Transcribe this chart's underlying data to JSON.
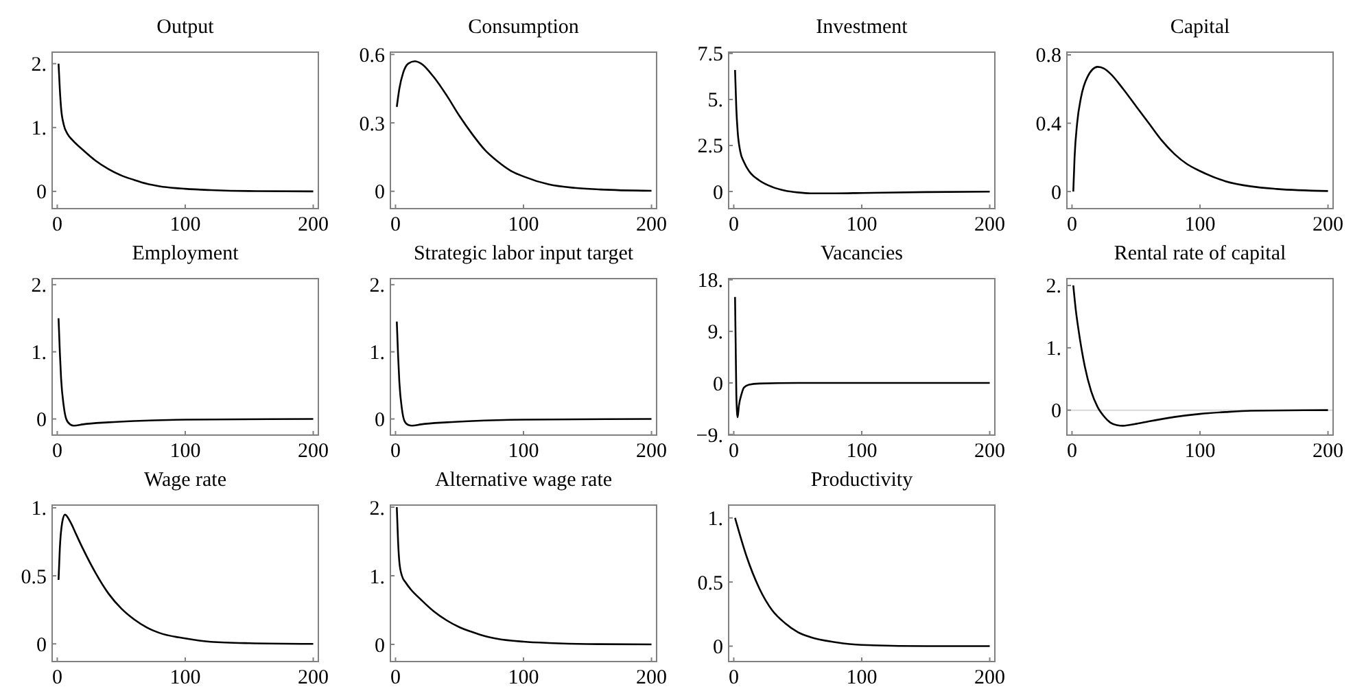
{
  "chart_data": [
    {
      "type": "line",
      "title": "Output",
      "x": [
        1,
        2,
        3,
        5,
        8,
        12,
        20,
        30,
        40,
        50,
        60,
        70,
        80,
        100,
        120,
        150,
        200
      ],
      "series": [
        {
          "color": "#000000",
          "values": [
            2.0,
            1.6,
            1.3,
            1.05,
            0.9,
            0.8,
            0.65,
            0.48,
            0.35,
            0.25,
            0.18,
            0.12,
            0.08,
            0.04,
            0.02,
            0.005,
            0
          ]
        }
      ],
      "xlim": [
        -4,
        204
      ],
      "xticks": [
        0,
        100,
        200
      ],
      "ylim": [
        -0.27,
        2.18
      ],
      "yticks": [
        0,
        {
          "value": 1,
          "label": "1."
        },
        {
          "value": 2,
          "label": "2."
        }
      ]
    },
    {
      "type": "line",
      "title": "Consumption",
      "x": [
        1,
        3,
        6,
        10,
        15,
        20,
        30,
        40,
        50,
        60,
        70,
        80,
        90,
        100,
        120,
        140,
        160,
        200
      ],
      "series": [
        {
          "color": "#000000",
          "values": [
            0.37,
            0.45,
            0.52,
            0.56,
            0.57,
            0.56,
            0.5,
            0.42,
            0.33,
            0.25,
            0.18,
            0.13,
            0.09,
            0.065,
            0.03,
            0.015,
            0.008,
            0.002
          ]
        }
      ],
      "xlim": [
        -4,
        204
      ],
      "xticks": [
        0,
        100,
        200
      ],
      "ylim": [
        -0.076,
        0.61
      ],
      "yticks": [
        0,
        0.3,
        0.6
      ]
    },
    {
      "type": "line",
      "title": "Investment",
      "x": [
        1,
        2,
        3,
        5,
        8,
        12,
        20,
        30,
        40,
        50,
        60,
        80,
        100,
        150,
        200
      ],
      "series": [
        {
          "color": "#000000",
          "values": [
            6.6,
            4.5,
            3.3,
            2.2,
            1.6,
            1.1,
            0.6,
            0.25,
            0.05,
            -0.05,
            -0.1,
            -0.1,
            -0.08,
            -0.03,
            -0.01
          ]
        }
      ],
      "xlim": [
        -4,
        204
      ],
      "xticks": [
        0,
        100,
        200
      ],
      "ylim": [
        -0.93,
        7.57
      ],
      "yticks": [
        0,
        2.5,
        {
          "value": 5,
          "label": "5."
        },
        7.5
      ]
    },
    {
      "type": "line",
      "title": "Capital",
      "x": [
        1,
        2,
        4,
        7,
        12,
        20,
        25,
        30,
        40,
        50,
        60,
        70,
        80,
        90,
        100,
        120,
        140,
        160,
        200
      ],
      "series": [
        {
          "color": "#000000",
          "values": [
            0,
            0.2,
            0.4,
            0.55,
            0.67,
            0.73,
            0.72,
            0.69,
            0.6,
            0.5,
            0.4,
            0.3,
            0.22,
            0.16,
            0.12,
            0.06,
            0.03,
            0.015,
            0.003
          ]
        }
      ],
      "xlim": [
        -4,
        204
      ],
      "xticks": [
        0,
        100,
        200
      ],
      "ylim": [
        -0.1,
        0.816
      ],
      "yticks": [
        0,
        0.4,
        0.8
      ]
    },
    {
      "type": "line",
      "title": "Employment",
      "x": [
        1,
        2,
        3,
        5,
        7,
        10,
        13,
        20,
        40,
        60,
        100,
        200
      ],
      "series": [
        {
          "color": "#000000",
          "values": [
            1.5,
            1.0,
            0.6,
            0.2,
            0,
            -0.08,
            -0.1,
            -0.08,
            -0.05,
            -0.03,
            -0.01,
            0
          ]
        }
      ],
      "xlim": [
        -4,
        204
      ],
      "xticks": [
        0,
        100,
        200
      ],
      "ylim": [
        -0.24,
        2.09
      ],
      "yticks": [
        0,
        {
          "value": 1,
          "label": "1."
        },
        {
          "value": 2,
          "label": "2."
        }
      ]
    },
    {
      "type": "line",
      "title": "Strategic labor input target",
      "x": [
        1,
        2,
        3,
        5,
        7,
        10,
        13,
        20,
        40,
        60,
        100,
        200
      ],
      "series": [
        {
          "color": "#000000",
          "values": [
            1.45,
            0.95,
            0.55,
            0.15,
            -0.03,
            -0.09,
            -0.1,
            -0.08,
            -0.05,
            -0.03,
            -0.01,
            0
          ]
        }
      ],
      "xlim": [
        -4,
        204
      ],
      "xticks": [
        0,
        100,
        200
      ],
      "ylim": [
        -0.24,
        2.09
      ],
      "yticks": [
        0,
        {
          "value": 1,
          "label": "1."
        },
        {
          "value": 2,
          "label": "2."
        }
      ]
    },
    {
      "type": "line",
      "title": "Vacancies",
      "x": [
        1,
        2,
        3,
        4,
        6,
        8,
        12,
        20,
        50,
        200
      ],
      "series": [
        {
          "color": "#000000",
          "values": [
            15,
            -2,
            -6,
            -4,
            -2,
            -0.8,
            -0.3,
            -0.1,
            0,
            0
          ]
        }
      ],
      "xlim": [
        -4,
        204
      ],
      "xticks": [
        0,
        100,
        200
      ],
      "ylim": [
        -9.1,
        18.2
      ],
      "yticks": [
        {
          "value": -9,
          "label": "−9."
        },
        0,
        {
          "value": 9,
          "label": "9."
        },
        {
          "value": 18,
          "label": "18."
        }
      ]
    },
    {
      "type": "line",
      "title": "Rental rate of capital",
      "x": [
        1,
        3,
        5,
        10,
        15,
        20,
        25,
        30,
        35,
        40,
        50,
        60,
        80,
        100,
        120,
        140,
        200
      ],
      "series": [
        {
          "color": "#000000",
          "values": [
            2.0,
            1.6,
            1.3,
            0.7,
            0.3,
            0.05,
            -0.1,
            -0.2,
            -0.24,
            -0.25,
            -0.22,
            -0.18,
            -0.11,
            -0.06,
            -0.03,
            -0.01,
            0
          ]
        }
      ],
      "xlim": [
        -4,
        204
      ],
      "xticks": [
        0,
        100,
        200
      ],
      "ylim": [
        -0.4,
        2.11
      ],
      "yticks": [
        0,
        {
          "value": 1,
          "label": "1."
        },
        {
          "value": 2,
          "label": "2."
        }
      ],
      "ref_lines": [
        {
          "axis": "y",
          "value": 0,
          "label": null,
          "color": "#d9d9d9"
        }
      ]
    },
    {
      "type": "line",
      "title": "Wage rate",
      "x": [
        1,
        2,
        4,
        6,
        10,
        15,
        20,
        30,
        40,
        50,
        60,
        70,
        80,
        100,
        120,
        150,
        200
      ],
      "series": [
        {
          "color": "#000000",
          "values": [
            0.47,
            0.7,
            0.9,
            0.95,
            0.9,
            0.8,
            0.7,
            0.52,
            0.37,
            0.26,
            0.18,
            0.12,
            0.08,
            0.04,
            0.015,
            0.005,
            0
          ]
        }
      ],
      "xlim": [
        -4,
        204
      ],
      "xticks": [
        0,
        100,
        200
      ],
      "ylim": [
        -0.13,
        1.02
      ],
      "yticks": [
        0,
        0.5,
        {
          "value": 1,
          "label": "1."
        }
      ]
    },
    {
      "type": "line",
      "title": "Alternative wage rate",
      "x": [
        1,
        2,
        3,
        5,
        8,
        12,
        20,
        30,
        40,
        50,
        60,
        70,
        80,
        100,
        120,
        150,
        200
      ],
      "series": [
        {
          "color": "#000000",
          "values": [
            2.0,
            1.5,
            1.2,
            1.0,
            0.9,
            0.8,
            0.65,
            0.48,
            0.35,
            0.25,
            0.18,
            0.12,
            0.08,
            0.04,
            0.02,
            0.005,
            0
          ]
        }
      ],
      "xlim": [
        -4,
        204
      ],
      "xticks": [
        0,
        100,
        200
      ],
      "ylim": [
        -0.25,
        2.03
      ],
      "yticks": [
        0,
        {
          "value": 1,
          "label": "1."
        },
        {
          "value": 2,
          "label": "2."
        }
      ]
    },
    {
      "type": "line",
      "title": "Productivity",
      "x": [
        1,
        10,
        20,
        30,
        40,
        50,
        60,
        80,
        100,
        150,
        200
      ],
      "series": [
        {
          "color": "#000000",
          "values": [
            1.0,
            0.7,
            0.45,
            0.28,
            0.18,
            0.11,
            0.07,
            0.03,
            0.01,
            0,
            0
          ]
        }
      ],
      "xlim": [
        -4,
        204
      ],
      "xticks": [
        0,
        100,
        200
      ],
      "ylim": [
        -0.12,
        1.1
      ],
      "yticks": [
        0,
        0.5,
        {
          "value": 1,
          "label": "1."
        }
      ]
    }
  ]
}
